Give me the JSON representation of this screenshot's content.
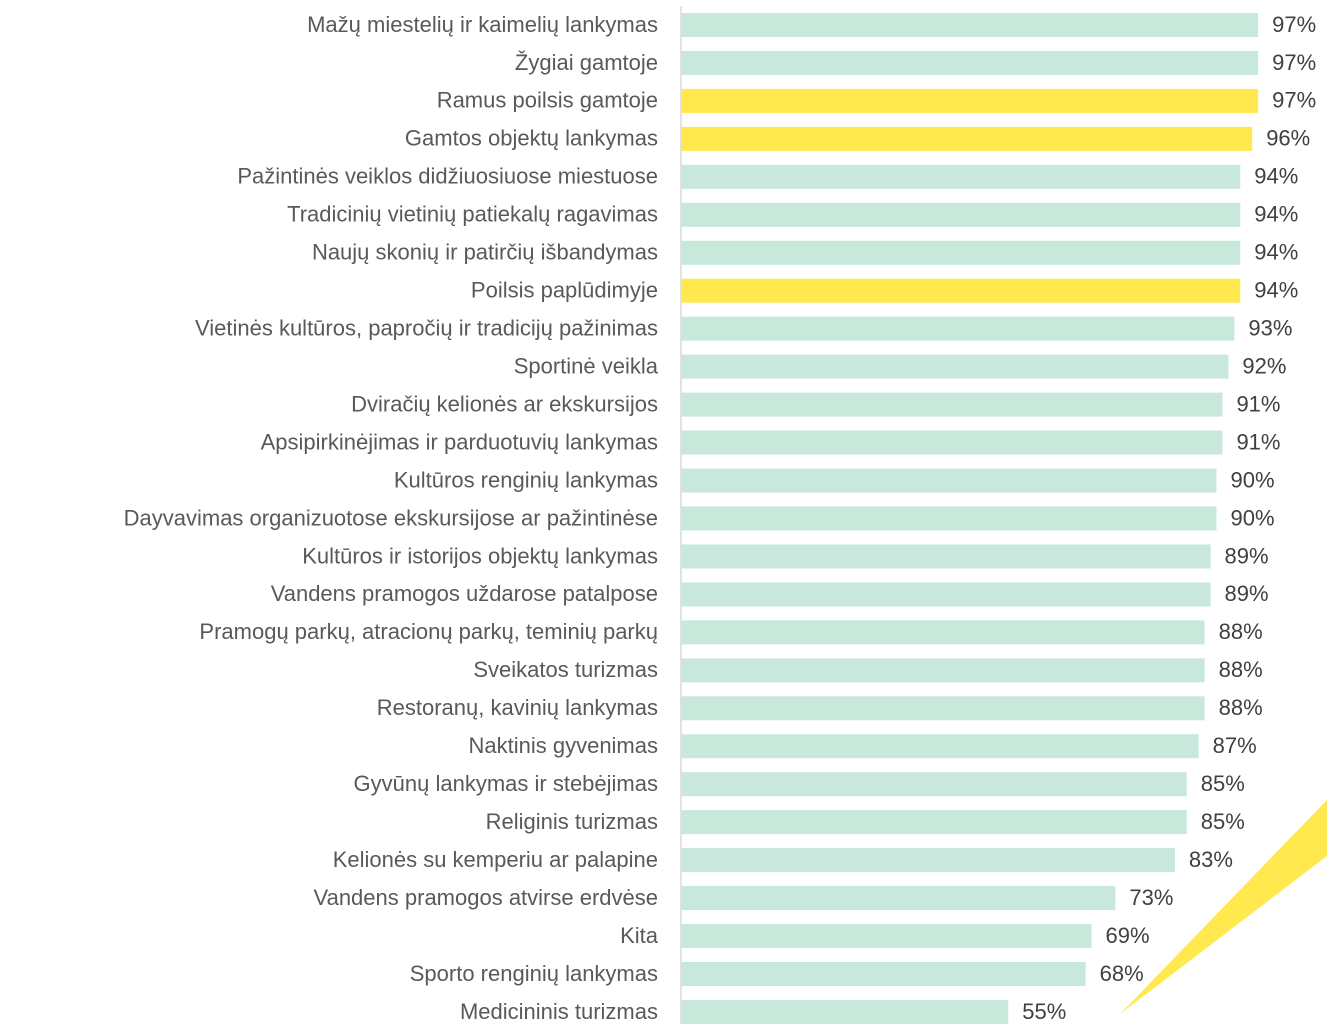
{
  "chart_data": {
    "type": "barh",
    "categories": [
      "Mažų miestelių ir kaimelių lankymas",
      "Žygiai gamtoje",
      "Ramus poilsis gamtoje",
      "Gamtos objektų lankymas",
      "Pažintinės veiklos didžiuosiuose miestuose",
      "Tradicinių vietinių patiekalų ragavimas",
      "Naujų skonių ir patirčių išbandymas",
      "Poilsis paplūdimyje",
      "Vietinės kultūros, papročių ir tradicijų pažinimas",
      "Sportinė veikla",
      "Dviračių kelionės ar ekskursijos",
      "Apsipirkinėjimas ir parduotuvių lankymas",
      "Kultūros renginių lankymas",
      "Dayvavimas organizuotose ekskursijose ar pažintinėse",
      "Kultūros ir istorijos objektų lankymas",
      "Vandens pramogos uždarose patalpose",
      "Pramogų parkų, atracionų parkų, teminių parkų",
      "Sveikatos turizmas",
      "Restoranų, kavinių lankymas",
      "Naktinis gyvenimas",
      "Gyvūnų lankymas ir stebėjimas",
      "Religinis turizmas",
      "Kelionės su kemperiu ar palapine",
      "Vandens pramogos atvirse erdvėse",
      "Kita",
      "Sporto renginių lankymas",
      "Medicininis turizmas"
    ],
    "values": [
      97,
      97,
      97,
      96,
      94,
      94,
      94,
      94,
      93,
      92,
      91,
      91,
      90,
      90,
      89,
      89,
      88,
      88,
      88,
      87,
      85,
      85,
      83,
      73,
      69,
      68,
      55
    ],
    "value_labels": [
      "97%",
      "97%",
      "97%",
      "96%",
      "94%",
      "94%",
      "94%",
      "94%",
      "93%",
      "92%",
      "91%",
      "91%",
      "90%",
      "90%",
      "89%",
      "89%",
      "88%",
      "88%",
      "88%",
      "87%",
      "85%",
      "85%",
      "83%",
      "73%",
      "69%",
      "68%",
      "55%"
    ],
    "colors": [
      "#c8e8dc",
      "#c8e8dc",
      "#ffe94f",
      "#ffe94f",
      "#c8e8dc",
      "#c8e8dc",
      "#c8e8dc",
      "#ffe94f",
      "#c8e8dc",
      "#c8e8dc",
      "#c8e8dc",
      "#c8e8dc",
      "#c8e8dc",
      "#c8e8dc",
      "#c8e8dc",
      "#c8e8dc",
      "#c8e8dc",
      "#c8e8dc",
      "#c8e8dc",
      "#c8e8dc",
      "#c8e8dc",
      "#c8e8dc",
      "#c8e8dc",
      "#c8e8dc",
      "#c8e8dc",
      "#c8e8dc",
      "#c8e8dc"
    ],
    "xlim": [
      0,
      100
    ]
  }
}
